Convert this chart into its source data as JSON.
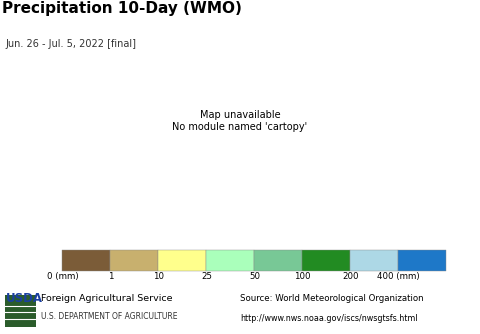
{
  "title": "Precipitation 10-Day (WMO)",
  "subtitle": "Jun. 26 - Jul. 5, 2022 [final]",
  "colorbar_colors": [
    "#7B5C38",
    "#C8B06E",
    "#FFFF8C",
    "#AAFFBB",
    "#78C896",
    "#228B22",
    "#ADD8E6",
    "#1E78C8"
  ],
  "colorbar_labels": [
    "0 (mm)",
    "1",
    "10",
    "25",
    "50",
    "100",
    "200",
    "400 (mm)"
  ],
  "ocean_color": "#AADDEE",
  "land_base_color": "#AAFFBB",
  "footer_left_line1": "Foreign Agricultural Service",
  "footer_left_line2": "U.S. DEPARTMENT OF AGRICULTURE",
  "footer_right_line1": "Source: World Meteorological Organization",
  "footer_right_line2": "http://www.nws.noaa.gov/iscs/nwsgtsfs.html",
  "bg_color": "#FFFFFF",
  "footer_bg": "#D8D8D8",
  "title_fontsize": 11,
  "subtitle_fontsize": 7,
  "title_color": "#000000",
  "subtitle_color": "#333333",
  "border_color": "#000000",
  "border_lw": 0.3,
  "coastline_lw": 0.5
}
